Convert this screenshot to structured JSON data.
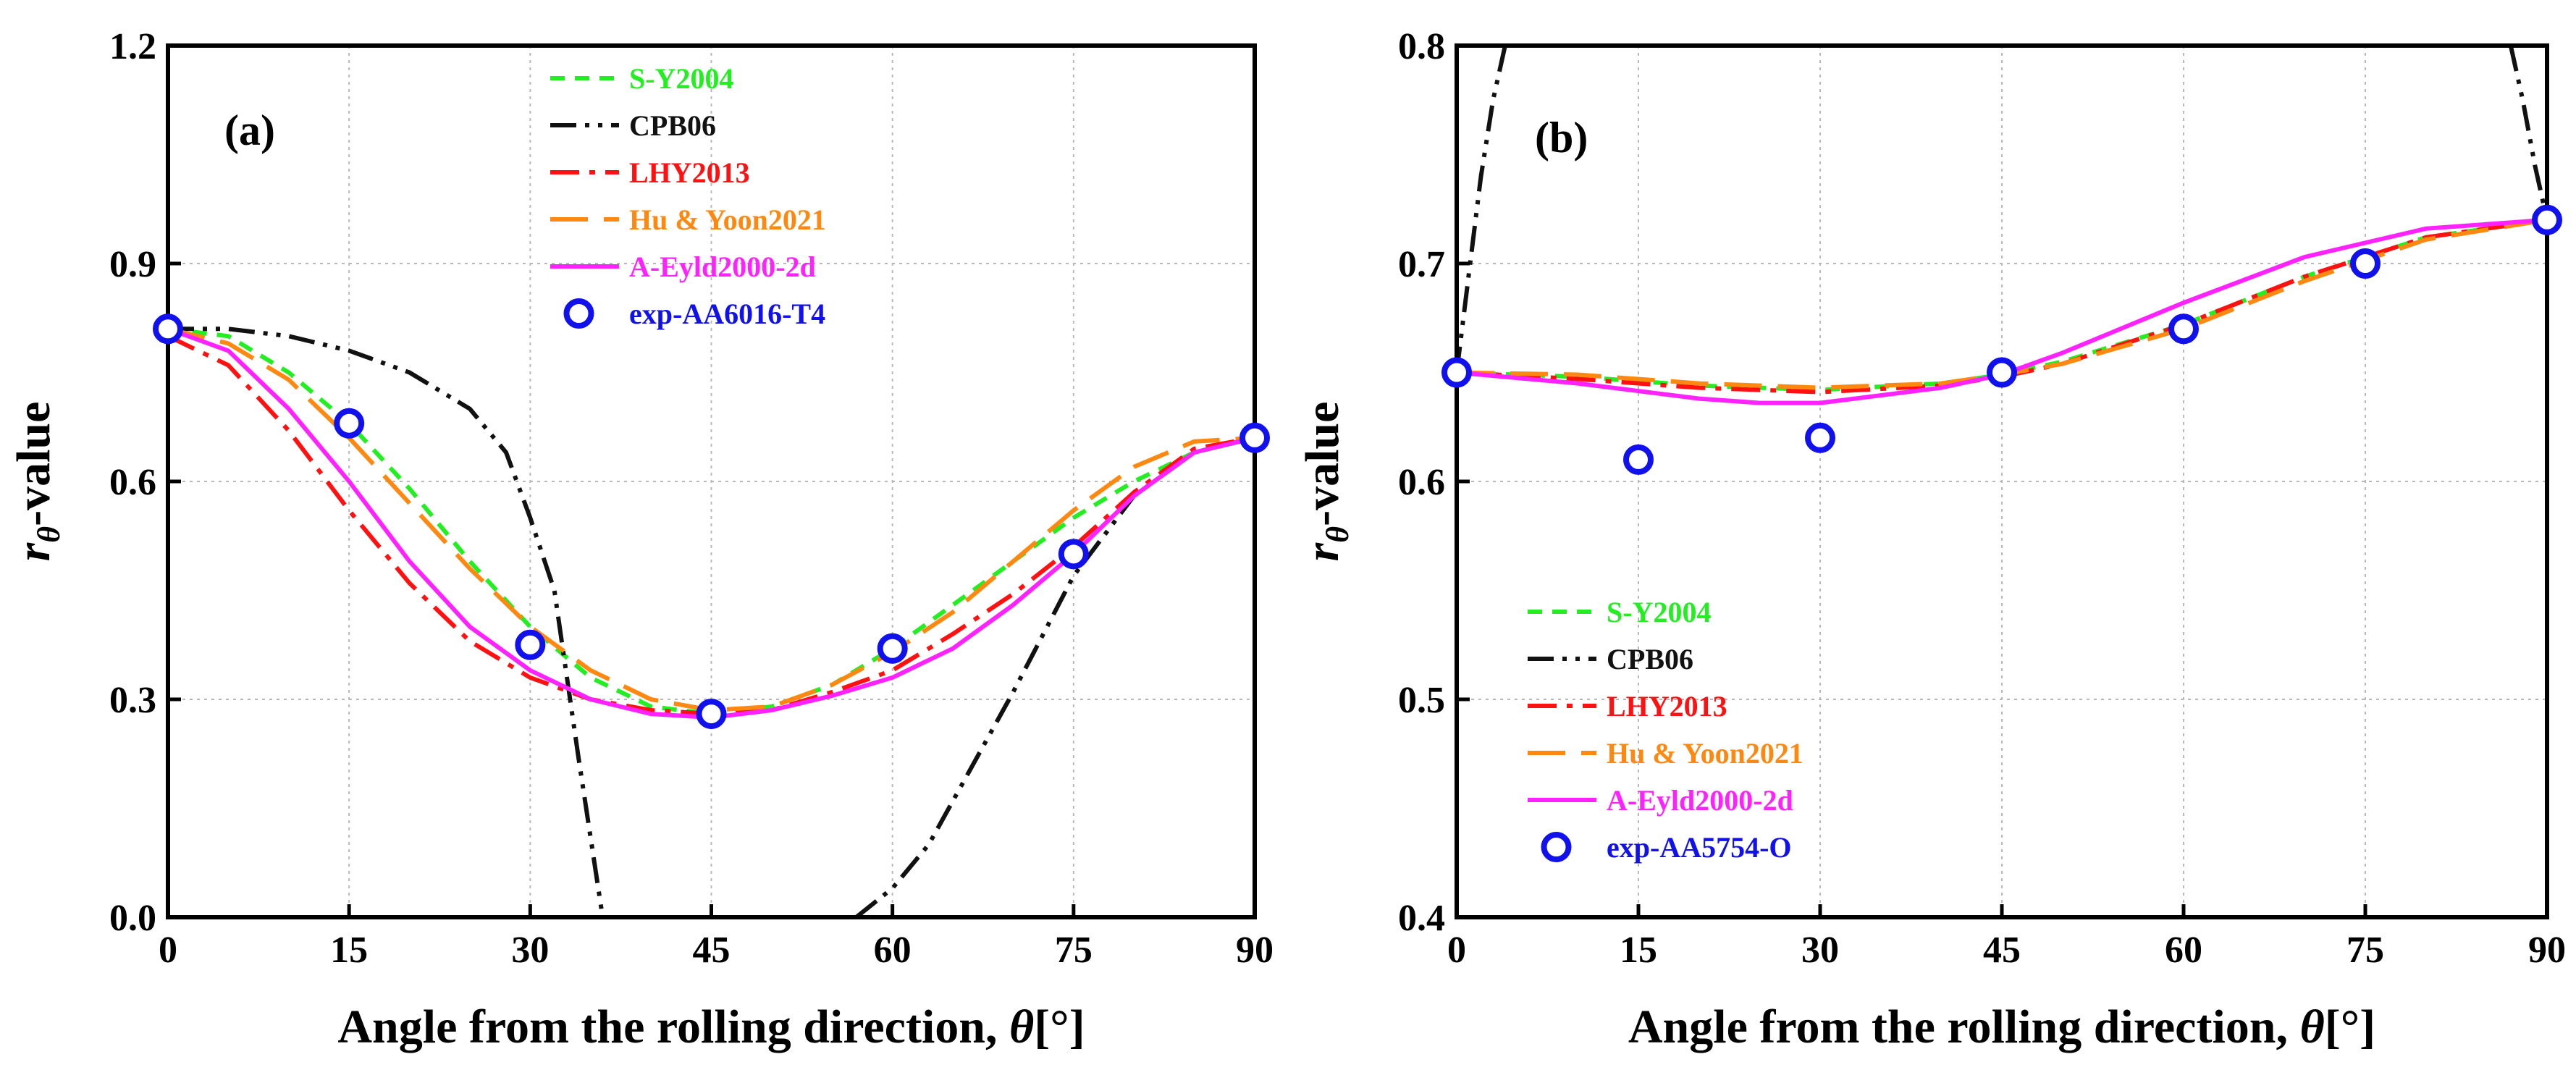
{
  "chart_data": [
    {
      "type": "line",
      "panel_label": "(a)",
      "xlabel_text": "Angle from the rolling direction, ",
      "xlabel_symbol": "θ",
      "xlabel_unit": "[°]",
      "ylabel_symbol": "r",
      "ylabel_subscript": "θ",
      "ylabel_suffix": "-value",
      "xlim": [
        0,
        90
      ],
      "ylim": [
        0.0,
        1.2
      ],
      "xticks": [
        0,
        15,
        30,
        45,
        60,
        75,
        90
      ],
      "xtick_labels": [
        "0",
        "15",
        "30",
        "45",
        "60",
        "75",
        "90"
      ],
      "yticks": [
        0.0,
        0.3,
        0.6,
        0.9,
        1.2
      ],
      "ytick_labels": [
        "0.0",
        "0.3",
        "0.6",
        "0.9",
        "1.2"
      ],
      "grid": true,
      "legend_position": "top-center",
      "series": [
        {
          "name": "S-Y2004",
          "kind": "line",
          "color": "#22ee22",
          "dash": "short-dash",
          "x": [
            0,
            5,
            10,
            15,
            20,
            25,
            30,
            35,
            40,
            45,
            50,
            55,
            60,
            65,
            70,
            75,
            80,
            85,
            90
          ],
          "y": [
            0.81,
            0.8,
            0.75,
            0.68,
            0.59,
            0.49,
            0.4,
            0.33,
            0.29,
            0.28,
            0.29,
            0.32,
            0.37,
            0.43,
            0.49,
            0.55,
            0.6,
            0.64,
            0.66
          ]
        },
        {
          "name": "CPB06",
          "kind": "line",
          "color": "#111111",
          "dash": "dash-dot-dot",
          "x": [
            0,
            5,
            10,
            15,
            20,
            25,
            28,
            30,
            32,
            34,
            36
          ],
          "y": [
            0.81,
            0.81,
            0.8,
            0.78,
            0.75,
            0.7,
            0.64,
            0.55,
            0.45,
            0.22,
            0.0
          ],
          "x2": [
            57,
            60,
            63,
            66,
            70,
            75,
            80,
            85,
            90
          ],
          "y2": [
            0.0,
            0.04,
            0.1,
            0.19,
            0.31,
            0.47,
            0.58,
            0.64,
            0.66
          ]
        },
        {
          "name": "LHY2013",
          "kind": "line",
          "color": "#ff1111",
          "dash": "dash-dot",
          "x": [
            0,
            5,
            10,
            15,
            20,
            25,
            30,
            35,
            40,
            45,
            50,
            55,
            60,
            65,
            70,
            75,
            80,
            85,
            90
          ],
          "y": [
            0.8,
            0.76,
            0.67,
            0.56,
            0.46,
            0.38,
            0.33,
            0.3,
            0.285,
            0.28,
            0.285,
            0.31,
            0.34,
            0.39,
            0.445,
            0.51,
            0.585,
            0.645,
            0.66
          ]
        },
        {
          "name": "Hu & Yoon2021",
          "kind": "line",
          "color": "#ff8811",
          "dash": "long-dash",
          "x": [
            0,
            5,
            10,
            15,
            20,
            25,
            30,
            35,
            40,
            45,
            50,
            55,
            60,
            65,
            70,
            75,
            80,
            85,
            90
          ],
          "y": [
            0.81,
            0.79,
            0.74,
            0.66,
            0.57,
            0.48,
            0.4,
            0.34,
            0.3,
            0.285,
            0.29,
            0.32,
            0.365,
            0.42,
            0.49,
            0.56,
            0.62,
            0.655,
            0.66
          ]
        },
        {
          "name": "A-Eyld2000-2d",
          "kind": "line",
          "color": "#ff22ff",
          "dash": "solid",
          "x": [
            0,
            5,
            10,
            15,
            20,
            25,
            30,
            35,
            40,
            45,
            50,
            55,
            60,
            65,
            70,
            75,
            80,
            85,
            90
          ],
          "y": [
            0.81,
            0.78,
            0.7,
            0.6,
            0.49,
            0.4,
            0.34,
            0.3,
            0.28,
            0.275,
            0.285,
            0.305,
            0.33,
            0.37,
            0.43,
            0.5,
            0.58,
            0.64,
            0.66
          ]
        },
        {
          "name": "exp-AA6016-T4",
          "kind": "scatter",
          "color": "#1111ee",
          "x": [
            0,
            15,
            30,
            45,
            60,
            75,
            90
          ],
          "y": [
            0.81,
            0.68,
            0.375,
            0.28,
            0.37,
            0.5,
            0.66
          ]
        }
      ]
    },
    {
      "type": "line",
      "panel_label": "(b)",
      "xlabel_text": "Angle from the rolling direction, ",
      "xlabel_symbol": "θ",
      "xlabel_unit": "[°]",
      "ylabel_symbol": "r",
      "ylabel_subscript": "θ",
      "ylabel_suffix": "-value",
      "xlim": [
        0,
        90
      ],
      "ylim": [
        0.4,
        0.8
      ],
      "xticks": [
        0,
        15,
        30,
        45,
        60,
        75,
        90
      ],
      "xtick_labels": [
        "0",
        "15",
        "30",
        "45",
        "60",
        "75",
        "90"
      ],
      "yticks": [
        0.4,
        0.5,
        0.6,
        0.7,
        0.8
      ],
      "ytick_labels": [
        "0.4",
        "0.5",
        "0.6",
        "0.7",
        "0.8"
      ],
      "grid": true,
      "legend_position": "bottom-left",
      "series": [
        {
          "name": "S-Y2004",
          "kind": "line",
          "color": "#22ee22",
          "dash": "short-dash",
          "x": [
            0,
            10,
            20,
            30,
            40,
            45,
            50,
            60,
            70,
            80,
            90
          ],
          "y": [
            0.65,
            0.648,
            0.644,
            0.642,
            0.645,
            0.649,
            0.655,
            0.672,
            0.694,
            0.712,
            0.72
          ]
        },
        {
          "name": "CPB06",
          "kind": "line",
          "color": "#111111",
          "dash": "dash-dot-dot",
          "x": [
            0,
            1,
            2,
            3,
            4
          ],
          "y": [
            0.65,
            0.695,
            0.74,
            0.775,
            0.8
          ],
          "x2": [
            87,
            88,
            89,
            90
          ],
          "y2": [
            0.8,
            0.775,
            0.745,
            0.72
          ]
        },
        {
          "name": "LHY2013",
          "kind": "line",
          "color": "#ff1111",
          "dash": "dash-dot",
          "x": [
            0,
            10,
            20,
            30,
            40,
            45,
            50,
            60,
            70,
            80,
            90
          ],
          "y": [
            0.65,
            0.647,
            0.643,
            0.641,
            0.644,
            0.648,
            0.654,
            0.672,
            0.694,
            0.712,
            0.72
          ]
        },
        {
          "name": "Hu & Yoon2021",
          "kind": "line",
          "color": "#ff8811",
          "dash": "long-dash",
          "x": [
            0,
            10,
            20,
            30,
            40,
            45,
            50,
            60,
            70,
            80,
            90
          ],
          "y": [
            0.65,
            0.649,
            0.645,
            0.643,
            0.645,
            0.649,
            0.654,
            0.67,
            0.692,
            0.711,
            0.72
          ]
        },
        {
          "name": "A-Eyld2000-2d",
          "kind": "line",
          "color": "#ff22ff",
          "dash": "solid",
          "x": [
            0,
            10,
            20,
            25,
            30,
            40,
            45,
            50,
            60,
            70,
            80,
            90
          ],
          "y": [
            0.65,
            0.645,
            0.638,
            0.636,
            0.636,
            0.643,
            0.649,
            0.659,
            0.682,
            0.703,
            0.716,
            0.72
          ]
        },
        {
          "name": "exp-AA5754-O",
          "kind": "scatter",
          "color": "#1111ee",
          "x": [
            0,
            15,
            30,
            45,
            60,
            75,
            90
          ],
          "y": [
            0.65,
            0.61,
            0.62,
            0.65,
            0.67,
            0.7,
            0.72
          ]
        }
      ]
    }
  ]
}
